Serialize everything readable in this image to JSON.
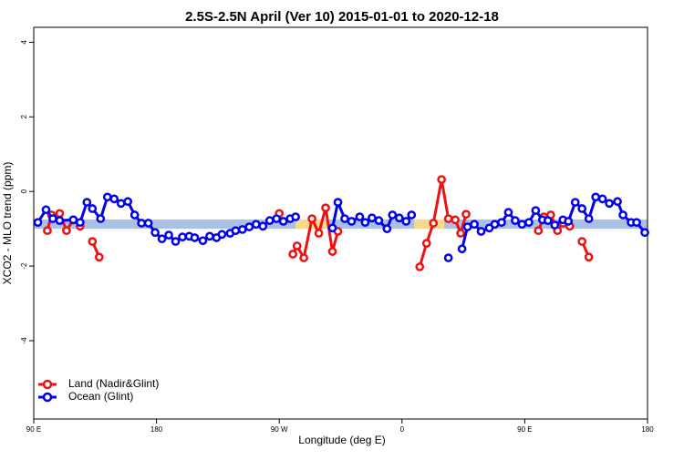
{
  "chart_data": {
    "type": "line",
    "title": "2.5S-2.5N April (Ver 10)   2015-01-01 to 2020-12-18",
    "x_label": "Longitude (deg E)",
    "y_label": "XCO2 - MLO trend (ppm)",
    "xlim": [
      90,
      540
    ],
    "ylim": [
      -6.1,
      4.4
    ],
    "xticks": [
      {
        "value": 90,
        "label": "90 E"
      },
      180,
      {
        "value": 270,
        "label": "90 W"
      },
      {
        "value": 360,
        "label": "0"
      },
      {
        "value": 450,
        "label": "90 E"
      },
      {
        "value": 540,
        "label": "180"
      }
    ],
    "yticks": [
      4,
      2,
      0,
      -2,
      -4
    ],
    "band": {
      "range": [
        -1.0,
        -0.75
      ],
      "color": "#a9c1e3"
    },
    "highlights": {
      "x_ranges": [
        [
          282,
          306
        ],
        [
          369,
          391
        ]
      ],
      "color": "#f6d98a"
    },
    "legend": "bottom-left",
    "series": [
      {
        "name": "Land (Nadir&Glint)",
        "color": "#ee1111",
        "x": [
          100,
          103,
          109,
          114,
          119,
          124,
          128,
          133,
          138,
          200,
          270,
          275,
          280,
          283,
          288,
          294,
          299,
          304,
          309,
          313,
          340,
          373,
          378,
          383,
          389,
          394,
          399,
          403,
          407,
          430,
          460,
          464,
          469,
          474,
          478,
          483,
          488,
          492,
          497
        ],
        "values": [
          -1.05,
          -0.63,
          -0.59,
          -1.05,
          -0.76,
          -0.93,
          null,
          -1.34,
          -1.76,
          null,
          -0.59,
          null,
          -1.68,
          -1.46,
          -1.78,
          -0.73,
          -1.12,
          -0.44,
          -1.61,
          -1.07,
          null,
          -2.02,
          -1.39,
          -0.85,
          0.32,
          -0.73,
          -0.76,
          -1.12,
          -0.61,
          null,
          -1.05,
          -0.68,
          -0.63,
          -1.05,
          -0.85,
          -0.93,
          null,
          -1.34,
          -1.76
        ]
      },
      {
        "name": "Ocean (Glint)",
        "color": "#0000ee",
        "x": [
          93,
          99,
          104,
          109,
          119,
          124,
          129,
          133,
          139,
          144,
          149,
          154,
          159,
          164,
          169,
          174,
          179,
          184,
          189,
          194,
          199,
          204,
          208,
          214,
          219,
          224,
          228,
          234,
          238,
          243,
          248,
          253,
          258,
          263,
          268,
          273,
          278,
          282,
          295,
          309,
          313,
          318,
          323,
          329,
          333,
          338,
          343,
          349,
          353,
          358,
          363,
          367,
          380,
          394,
          399,
          404,
          408,
          413,
          418,
          424,
          428,
          433,
          438,
          443,
          448,
          453,
          458,
          463,
          467,
          472,
          478,
          482,
          487,
          492,
          497,
          502,
          507,
          512,
          518,
          522,
          528,
          532,
          538
        ],
        "values": [
          -0.83,
          -0.49,
          -0.73,
          -0.78,
          -0.76,
          -0.83,
          -0.29,
          -0.46,
          -0.73,
          -0.15,
          -0.2,
          -0.32,
          -0.27,
          -0.63,
          -0.85,
          -0.85,
          -1.1,
          -1.27,
          -1.17,
          -1.34,
          -1.22,
          -1.2,
          -1.24,
          -1.32,
          -1.2,
          -1.24,
          -1.15,
          -1.12,
          -1.05,
          -1.02,
          -0.95,
          -0.88,
          -0.93,
          -0.78,
          -0.73,
          -0.8,
          -0.73,
          -0.68,
          null,
          -0.98,
          -0.29,
          -0.73,
          -0.8,
          -0.68,
          -0.83,
          -0.71,
          -0.78,
          -1.0,
          -0.63,
          -0.71,
          -0.8,
          -0.63,
          null,
          -1.78,
          null,
          -1.54,
          -0.95,
          -0.88,
          -1.07,
          -0.98,
          -0.88,
          -0.83,
          -0.56,
          -0.78,
          -0.88,
          -0.83,
          -0.51,
          -0.76,
          -0.78,
          -0.9,
          -0.76,
          -0.8,
          -0.29,
          -0.46,
          -0.73,
          -0.15,
          -0.2,
          -0.32,
          -0.27,
          -0.63,
          -0.83,
          -0.83,
          -1.1
        ]
      }
    ]
  }
}
